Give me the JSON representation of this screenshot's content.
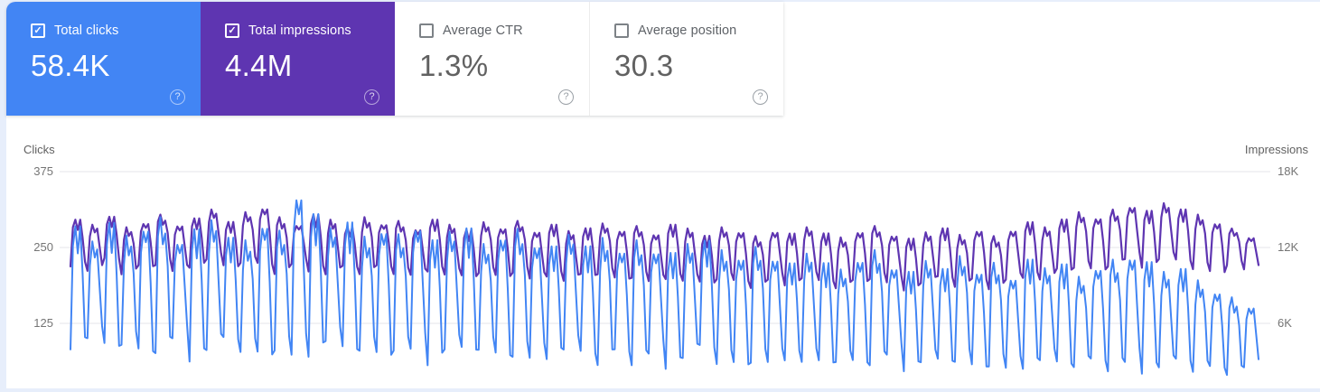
{
  "colors": {
    "clicks_accent": "#4285f4",
    "impressions_accent": "#5e35b1",
    "gridline": "#e5e6e8",
    "page_background": "#e7eefb"
  },
  "icons": {
    "check": "✓",
    "help": "?"
  },
  "cards": [
    {
      "id": "total-clicks",
      "label": "Total clicks",
      "value": "58.4K",
      "checked": true,
      "bg": "#4285f4"
    },
    {
      "id": "total-impressions",
      "label": "Total impressions",
      "value": "4.4M",
      "checked": true,
      "bg": "#5e35b1"
    },
    {
      "id": "average-ctr",
      "label": "Average CTR",
      "value": "1.3%",
      "checked": false,
      "bg": "#ffffff"
    },
    {
      "id": "average-position",
      "label": "Average position",
      "value": "30.3",
      "checked": false,
      "bg": "#ffffff"
    }
  ],
  "chart_data": {
    "type": "line",
    "title": "",
    "x_axis": {
      "granularity": "daily",
      "weeks_shown": 70,
      "labels_visible": false
    },
    "left_axis": {
      "title": "Clicks",
      "ticks": [
        "375",
        "250",
        "125"
      ],
      "tick_values": [
        375,
        250,
        125
      ],
      "min": 0
    },
    "right_axis": {
      "title": "Impressions",
      "ticks": [
        "18K",
        "12K",
        "6K"
      ],
      "tick_values": [
        18000,
        12000,
        6000
      ],
      "min": 0
    },
    "grid": "horizontal-only",
    "legend_position": "axis-titles",
    "pattern_note": "daily values with weekly seasonality; series stored as weekly peak/trough envelope read from the plot",
    "series": [
      {
        "id": "clicks-line",
        "name": "Clicks",
        "axis": "left",
        "color": "#4285f4",
        "stroke_width": 2,
        "weekly_peaks": [
          285,
          260,
          295,
          270,
          285,
          300,
          265,
          280,
          295,
          270,
          262,
          290,
          278,
          345,
          305,
          282,
          296,
          268,
          281,
          272,
          290,
          262,
          276,
          286,
          256,
          270,
          281,
          261,
          252,
          271,
          256,
          266,
          247,
          262,
          250,
          241,
          256,
          265,
          246,
          236,
          251,
          238,
          224,
          240,
          228,
          214,
          232,
          246,
          222,
          210,
          228,
          218,
          236,
          212,
          225,
          205,
          230,
          216,
          226,
          202,
          218,
          230,
          240,
          226,
          210,
          218,
          196,
          178,
          168,
          156
        ],
        "weekly_troughs": [
          82,
          94,
          70,
          86,
          66,
          76,
          90,
          62,
          72,
          84,
          74,
          60,
          80,
          56,
          70,
          88,
          64,
          76,
          60,
          80,
          70,
          56,
          74,
          64,
          78,
          60,
          70,
          56,
          66,
          74,
          60,
          52,
          68,
          56,
          64,
          50,
          60,
          70,
          54,
          46,
          60,
          50,
          64,
          54,
          46,
          58,
          50,
          56,
          64,
          46,
          54,
          50,
          58,
          44,
          54,
          42,
          50,
          58,
          44,
          50,
          54,
          46,
          50,
          42,
          46,
          50,
          42,
          44,
          40,
          46
        ]
      },
      {
        "id": "impressions-line",
        "name": "Impressions",
        "axis": "right",
        "color": "#5e35b1",
        "stroke_width": 2.2,
        "weekly_peaks": [
          14200,
          13800,
          14500,
          13600,
          14000,
          14600,
          13900,
          14300,
          15000,
          14100,
          14800,
          15200,
          14400,
          13900,
          14600,
          14200,
          13700,
          14400,
          13900,
          14100,
          13600,
          14200,
          13800,
          13500,
          14000,
          13600,
          14100,
          13400,
          13800,
          13300,
          13600,
          13900,
          13400,
          13700,
          13200,
          13800,
          13500,
          13000,
          13600,
          13300,
          12900,
          13400,
          13100,
          13600,
          13200,
          12800,
          13300,
          13700,
          13100,
          12700,
          13200,
          13600,
          13000,
          13400,
          12900,
          13500,
          14000,
          13600,
          14300,
          14800,
          14400,
          15000,
          15400,
          14900,
          15500,
          15100,
          14600,
          14000,
          13500,
          12900
        ],
        "weekly_troughs": [
          10500,
          10000,
          10800,
          9800,
          10300,
          10600,
          9900,
          10400,
          10900,
          10200,
          10700,
          10400,
          9900,
          10500,
          10100,
          9700,
          10200,
          9800,
          10300,
          9900,
          9600,
          10100,
          9700,
          9400,
          9900,
          9500,
          10000,
          9300,
          9700,
          9200,
          9500,
          9800,
          9300,
          9600,
          9100,
          9500,
          9200,
          8900,
          9400,
          9100,
          8800,
          9200,
          9000,
          9400,
          9000,
          8700,
          9100,
          9500,
          9000,
          8600,
          9000,
          9300,
          8800,
          9200,
          8700,
          9200,
          9600,
          9300,
          9900,
          10300,
          10000,
          10500,
          10800,
          10400,
          10900,
          10600,
          10200,
          9800,
          10600,
          10100
        ]
      }
    ]
  }
}
